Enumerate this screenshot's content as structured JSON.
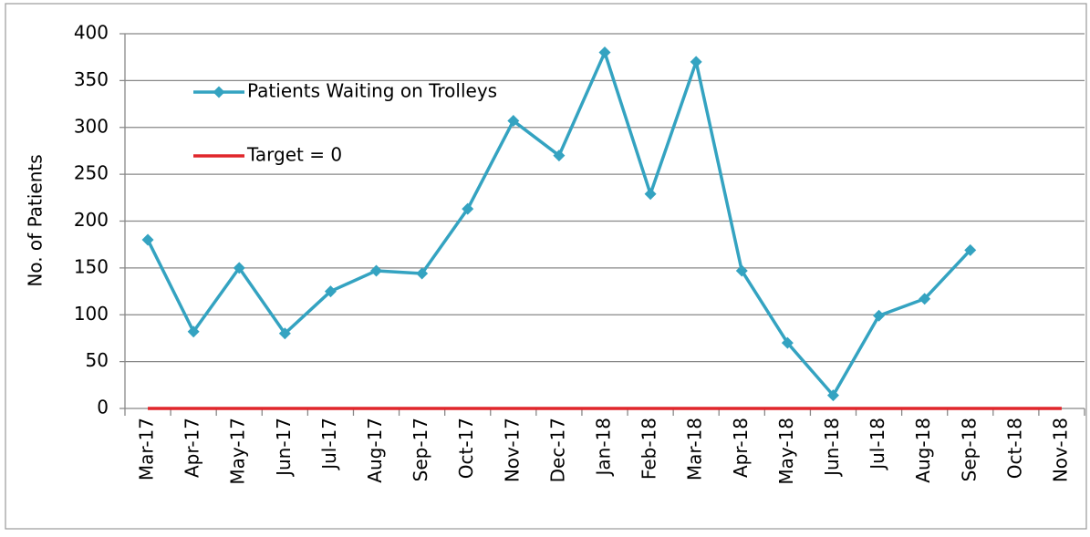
{
  "chart_data": {
    "type": "line",
    "y_label": "No. of Patients",
    "categories": [
      "Mar-17",
      "Apr-17",
      "May-17",
      "Jun-17",
      "Jul-17",
      "Aug-17",
      "Sep-17",
      "Oct-17",
      "Nov-17",
      "Dec-17",
      "Jan-18",
      "Feb-18",
      "Mar-18",
      "Apr-18",
      "May-18",
      "Jun-18",
      "Jul-18",
      "Aug-18",
      "Sep-18",
      "Oct-18",
      "Nov-18"
    ],
    "series": [
      {
        "name": "Patients Waiting on Trolleys",
        "color": "#34a3c1",
        "marker": "diamond",
        "values": [
          180,
          82,
          150,
          80,
          125,
          147,
          144,
          213,
          307,
          270,
          380,
          229,
          370,
          147,
          70,
          14,
          99,
          117,
          169,
          null,
          null
        ]
      },
      {
        "name": "Target = 0",
        "color": "#e0262b",
        "marker": "none",
        "values": [
          0,
          0,
          0,
          0,
          0,
          0,
          0,
          0,
          0,
          0,
          0,
          0,
          0,
          0,
          0,
          0,
          0,
          0,
          0,
          0,
          0
        ]
      }
    ],
    "ylim": [
      0,
      400
    ],
    "yticks": [
      0,
      50,
      100,
      150,
      200,
      250,
      300,
      350,
      400
    ],
    "grid": true,
    "legend": "upper left"
  }
}
